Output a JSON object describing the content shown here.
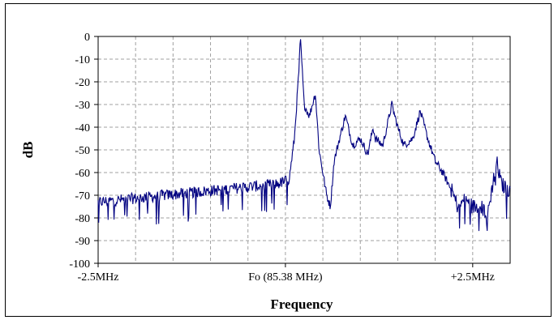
{
  "chart_data": {
    "type": "line",
    "title": "",
    "xlabel": "Frequency",
    "ylabel": "dB",
    "ylim": [
      -100,
      0
    ],
    "y_ticks": [
      0,
      -10,
      -20,
      -30,
      -40,
      -50,
      -60,
      -70,
      -80,
      -90,
      -100
    ],
    "y_tick_labels": [
      "0",
      "-10",
      "-20",
      "-30",
      "-40",
      "-50",
      "-60",
      "-70",
      "-80",
      "-90",
      "-100"
    ],
    "xlim": [
      -2.5,
      3.0
    ],
    "x_unit": "MHz offset from 85.38 MHz",
    "x_ticks": [
      -2.5,
      0,
      2.5
    ],
    "x_tick_labels": [
      "-2.5MHz",
      "Fo (85.38 MHz)",
      "+2.5MHz"
    ],
    "grid": true,
    "legend": "none",
    "series_color": "#000080",
    "series": [
      {
        "x": [
          -2.5,
          -2.2,
          -1.9,
          -1.6,
          -1.3,
          -1.0,
          -0.7,
          -0.4,
          -0.1,
          0.05,
          0.12,
          0.18,
          0.2,
          0.22,
          0.25,
          0.32,
          0.4,
          0.45,
          0.5,
          0.55,
          0.6,
          0.65,
          0.7,
          0.8,
          0.9,
          1.0,
          1.1,
          1.17,
          1.2,
          1.3,
          1.42,
          1.5,
          1.58,
          1.7,
          1.8,
          1.9,
          2.0,
          2.1,
          2.22,
          2.3,
          2.4,
          2.5,
          2.6,
          2.7,
          2.82,
          2.88,
          2.95,
          3.0
        ],
        "y": [
          -73,
          -72,
          -71,
          -70,
          -69,
          -68,
          -67,
          -66,
          -65,
          -63,
          -45,
          -15,
          -1,
          -12,
          -30,
          -35,
          -25,
          -50,
          -60,
          -70,
          -75,
          -55,
          -48,
          -35,
          -48,
          -45,
          -52,
          -40,
          -45,
          -48,
          -30,
          -40,
          -48,
          -45,
          -33,
          -45,
          -55,
          -60,
          -68,
          -75,
          -72,
          -75,
          -75,
          -78,
          -55,
          -65,
          -67,
          -68
        ]
      }
    ]
  }
}
